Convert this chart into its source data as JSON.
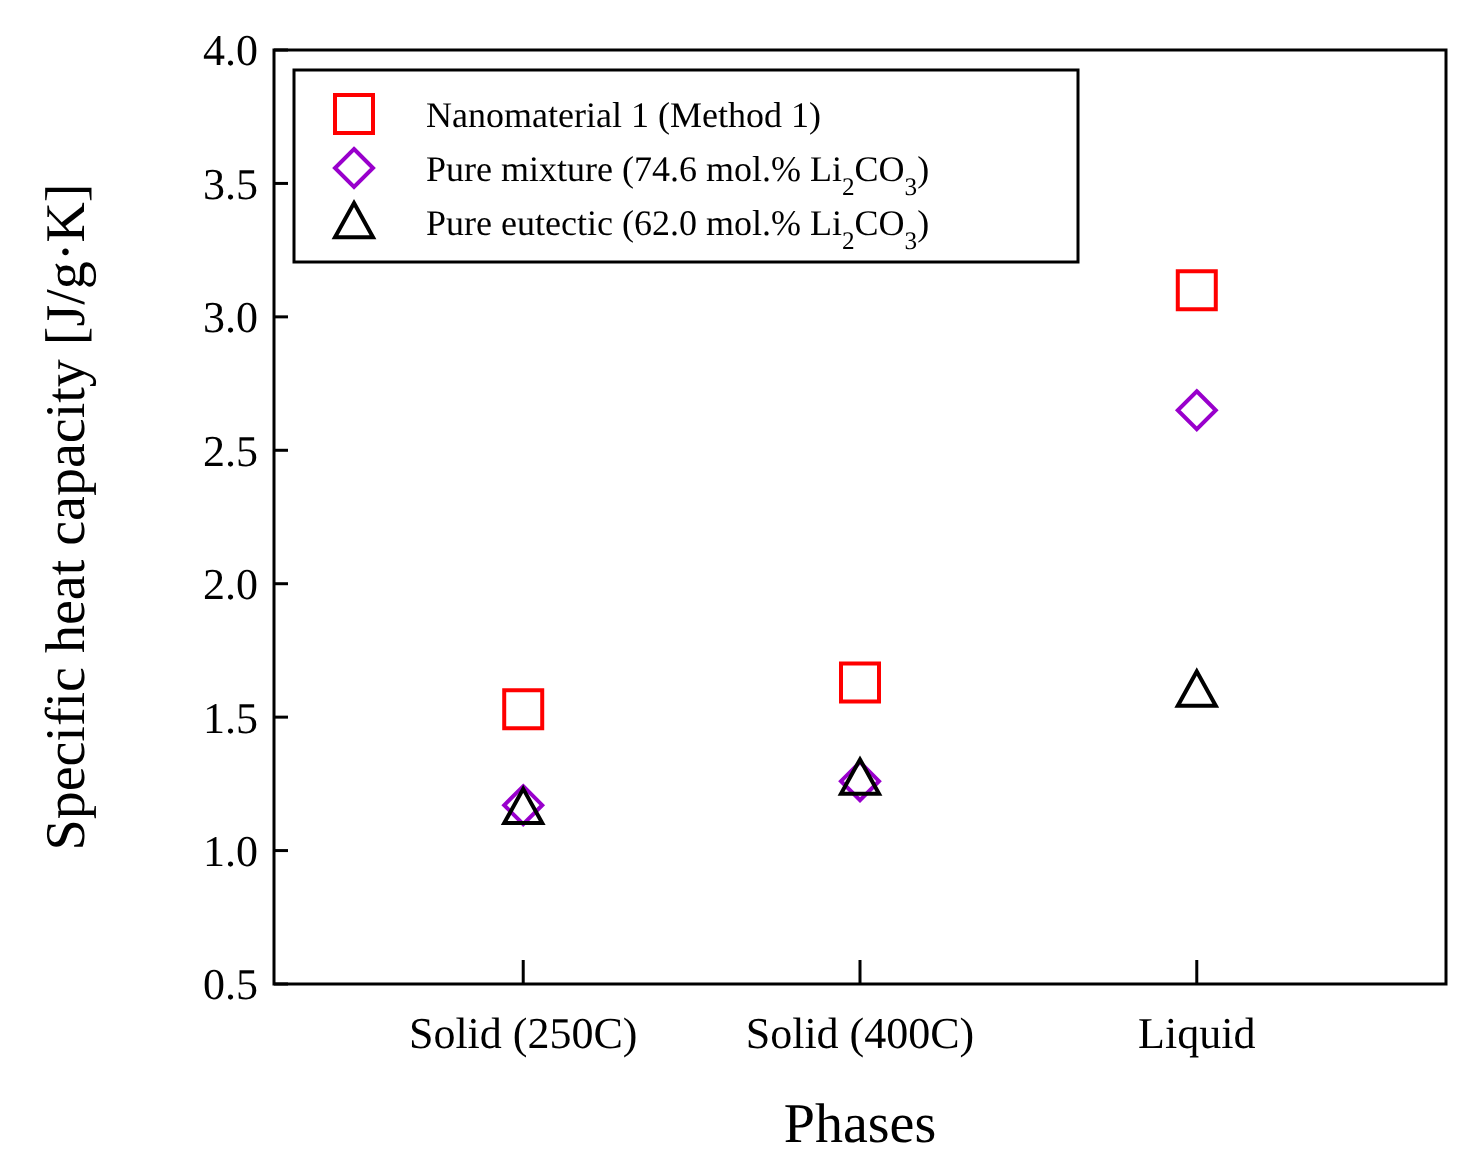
{
  "chart_data": {
    "type": "scatter",
    "xlabel": "Phases",
    "ylabel": "Specific heat capacity [J/g·K]",
    "categories": [
      "Solid (250C)",
      "Solid (400C)",
      "Liquid"
    ],
    "ylim": [
      0.5,
      4.0
    ],
    "yticks": [
      0.5,
      {
        "value": 1,
        "label": "1.0"
      },
      1.5,
      {
        "value": 2,
        "label": "2.0"
      },
      2.5,
      {
        "value": 3,
        "label": "3.0"
      },
      3.5,
      {
        "value": 4,
        "label": "4.0"
      }
    ],
    "legend": "top left",
    "grid": false,
    "series": [
      {
        "name": "Nanomaterial 1 (Method 1)",
        "color": "#ff0000",
        "marker": "square",
        "values": [
          1.53,
          1.63,
          3.1
        ]
      },
      {
        "name": "Pure mixture (74.6 mol.% Li$_{2}$CO$_{3}$)",
        "color": "#9900cc",
        "marker": "diamond",
        "values": [
          1.17,
          1.26,
          2.65
        ]
      },
      {
        "name": "Pure eutectic (62.0 mol.% Li$_{2}$CO$_{3}$)",
        "color": "#000000",
        "marker": "triangle",
        "values": [
          1.16,
          1.27,
          1.6
        ]
      }
    ]
  }
}
